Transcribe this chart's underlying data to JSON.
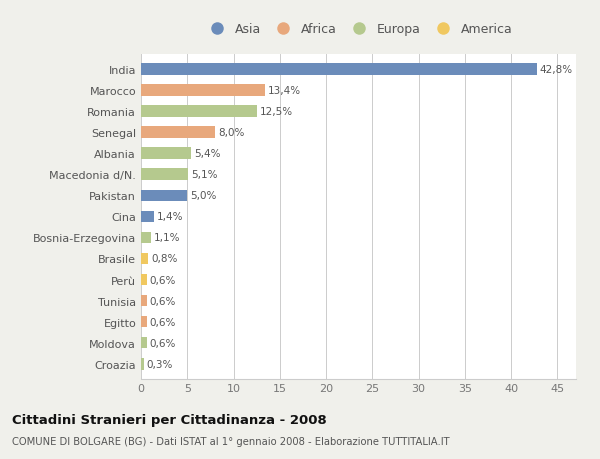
{
  "countries": [
    "India",
    "Marocco",
    "Romania",
    "Senegal",
    "Albania",
    "Macedonia d/N.",
    "Pakistan",
    "Cina",
    "Bosnia-Erzegovina",
    "Brasile",
    "Perù",
    "Tunisia",
    "Egitto",
    "Moldova",
    "Croazia"
  ],
  "values": [
    42.8,
    13.4,
    12.5,
    8.0,
    5.4,
    5.1,
    5.0,
    1.4,
    1.1,
    0.8,
    0.6,
    0.6,
    0.6,
    0.6,
    0.3
  ],
  "labels": [
    "42,8%",
    "13,4%",
    "12,5%",
    "8,0%",
    "5,4%",
    "5,1%",
    "5,0%",
    "1,4%",
    "1,1%",
    "0,8%",
    "0,6%",
    "0,6%",
    "0,6%",
    "0,6%",
    "0,3%"
  ],
  "continents": [
    "Asia",
    "Africa",
    "Europa",
    "Africa",
    "Europa",
    "Europa",
    "Asia",
    "Asia",
    "Europa",
    "America",
    "America",
    "Africa",
    "Africa",
    "Europa",
    "Europa"
  ],
  "colors": {
    "Asia": "#6b8cba",
    "Africa": "#e8a87c",
    "Europa": "#b5c98e",
    "America": "#f0c860"
  },
  "legend_order": [
    "Asia",
    "Africa",
    "Europa",
    "America"
  ],
  "title": "Cittadini Stranieri per Cittadinanza - 2008",
  "subtitle": "COMUNE DI BOLGARE (BG) - Dati ISTAT al 1° gennaio 2008 - Elaborazione TUTTITALIA.IT",
  "xlim": [
    0,
    47
  ],
  "xticks": [
    0,
    5,
    10,
    15,
    20,
    25,
    30,
    35,
    40,
    45
  ],
  "bg_color": "#f0f0eb",
  "bar_bg_color": "#ffffff",
  "grid_color": "#cccccc",
  "bar_height": 0.55
}
